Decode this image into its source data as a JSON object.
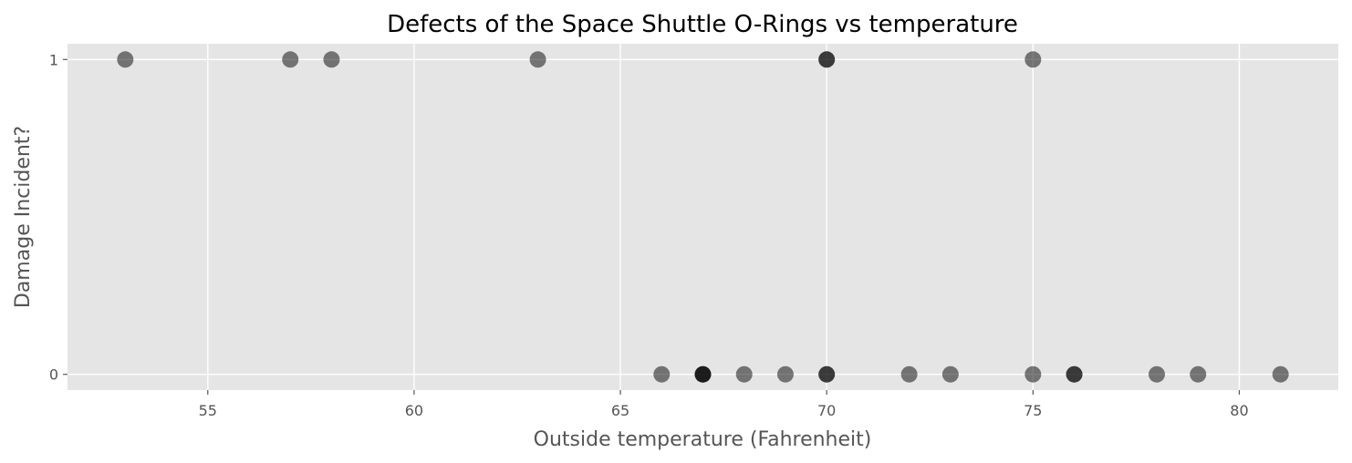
{
  "chart_data": {
    "type": "scatter",
    "title": "Defects of the Space Shuttle O-Rings vs temperature",
    "xlabel": "Outside temperature (Fahrenheit)",
    "ylabel": "Damage Incident?",
    "xlim": [
      51.6,
      82.4
    ],
    "ylim": [
      -0.05,
      1.05
    ],
    "xticks": [
      55,
      60,
      65,
      70,
      75,
      80
    ],
    "yticks": [
      0,
      1
    ],
    "grid": true,
    "background": "#e5e5e5",
    "marker_color": "#000000",
    "marker_alpha": 0.5,
    "points": [
      {
        "x": 66,
        "y": 0
      },
      {
        "x": 70,
        "y": 1
      },
      {
        "x": 69,
        "y": 0
      },
      {
        "x": 68,
        "y": 0
      },
      {
        "x": 67,
        "y": 0
      },
      {
        "x": 72,
        "y": 0
      },
      {
        "x": 73,
        "y": 0
      },
      {
        "x": 70,
        "y": 0
      },
      {
        "x": 57,
        "y": 1
      },
      {
        "x": 63,
        "y": 1
      },
      {
        "x": 70,
        "y": 1
      },
      {
        "x": 78,
        "y": 0
      },
      {
        "x": 67,
        "y": 0
      },
      {
        "x": 53,
        "y": 1
      },
      {
        "x": 67,
        "y": 0
      },
      {
        "x": 75,
        "y": 0
      },
      {
        "x": 70,
        "y": 0
      },
      {
        "x": 81,
        "y": 0
      },
      {
        "x": 76,
        "y": 0
      },
      {
        "x": 79,
        "y": 0
      },
      {
        "x": 75,
        "y": 1
      },
      {
        "x": 76,
        "y": 0
      },
      {
        "x": 58,
        "y": 1
      }
    ]
  }
}
